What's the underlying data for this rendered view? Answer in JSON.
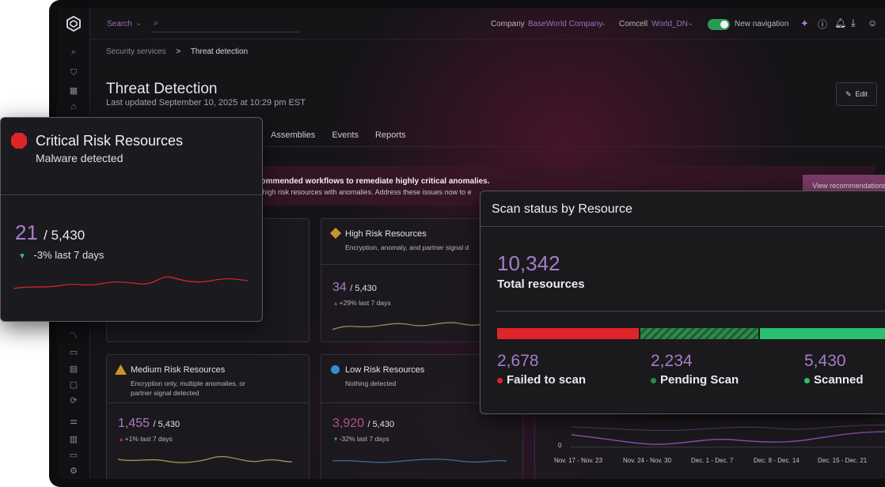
{
  "topbar": {
    "search_label": "Search",
    "company_label": "Company",
    "company_value": "BaseWorld Company",
    "comcell_label": "Comcell",
    "comcell_value": "World_DN",
    "new_nav_label": "New navigation",
    "new_nav_on": true
  },
  "breadcrumb": {
    "parent": "Security services",
    "current": "Threat detection"
  },
  "page": {
    "title": "Threat Detection",
    "updated": "Last updated September 10, 2025 at 10:29 pm EST",
    "edit_label": "Edit"
  },
  "tabs": [
    "Assemblies",
    "Events",
    "Reports"
  ],
  "banner": {
    "title": "commended workflows to remediate highly critical anomalies.",
    "text": "4 high risk resources with anomalies. Address these issues now to e",
    "button": "View recommendations"
  },
  "cards": {
    "high": {
      "title": "High Risk Resources",
      "subtitle": "Encryption, anomaly, and partner signal d",
      "value": "34",
      "of": "/ 5,430",
      "trend": "+29% last 7 days"
    },
    "medium": {
      "title": "Medium Risk Resources",
      "subtitle": "Encryption only, multiple anomalies, or partner signal detected",
      "value": "1,455",
      "of": "/ 5,430",
      "trend": "+1% last 7 days"
    },
    "low": {
      "title": "Low Risk Resources",
      "subtitle": "Nothing detected",
      "value": "3,920",
      "of": "/ 5,430",
      "trend": "-32% last 7 days"
    }
  },
  "chart": {
    "zero": "0",
    "x_labels": [
      "Nov. 17 - Nov. 23",
      "Nov. 24 - Nov. 30",
      "Dec. 1 - Dec. 7",
      "Dec. 8 - Dec. 14",
      "Dec. 15 - Dec. 21"
    ]
  },
  "critical_popup": {
    "title": "Critical Risk Resources",
    "subtitle": "Malware detected",
    "value": "21",
    "of": "/ 5,430",
    "trend": "-3% last 7 days"
  },
  "scan_popup": {
    "title": "Scan status by Resource",
    "total": "10,342",
    "total_label": "Total resources",
    "failed": {
      "value": "2,678",
      "label": "Failed to scan",
      "color": "#e0252a",
      "fraction": 0.259
    },
    "pending": {
      "value": "2,234",
      "label": "Pending Scan",
      "color": "#2c8a4e",
      "fraction": 0.216
    },
    "scanned": {
      "value": "5,430",
      "label": "Scanned",
      "color": "#29c070",
      "fraction": 0.525
    }
  },
  "colors": {
    "accent_purple": "#a77bc9",
    "critical_red": "#e0252a",
    "high_amber": "#c9962a",
    "low_blue": "#2f8fd0"
  }
}
